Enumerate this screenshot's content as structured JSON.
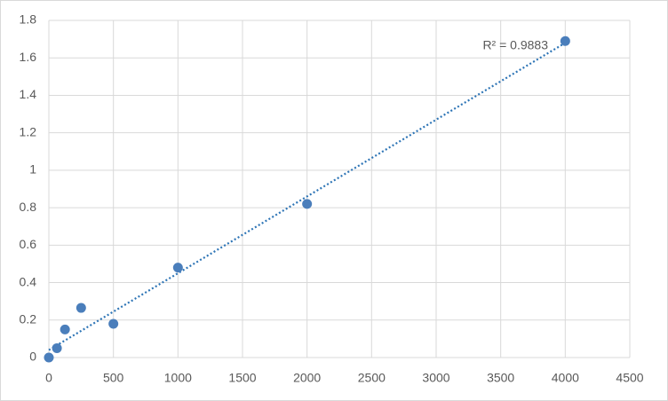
{
  "chart_data": {
    "type": "scatter",
    "x": [
      0,
      62.5,
      125,
      250,
      500,
      1000,
      2000,
      4000
    ],
    "values": [
      0,
      0.05,
      0.15,
      0.265,
      0.18,
      0.48,
      0.82,
      1.69
    ],
    "color": "#4a7ebb",
    "xlim": [
      0,
      4500
    ],
    "xticks": [
      0,
      500,
      1000,
      1500,
      2000,
      2500,
      3000,
      3500,
      4000,
      4500
    ],
    "ylim": [
      0,
      1.8
    ],
    "yticks": [
      0,
      0.2,
      0.4,
      0.6,
      0.8,
      1,
      1.2,
      1.4,
      1.6,
      1.8
    ],
    "grid": true,
    "trendline": {
      "x": [
        0,
        4000
      ],
      "y": [
        0.04,
        1.68
      ],
      "color": "#2e75b6"
    },
    "annotation": "R² = 0.9883"
  }
}
